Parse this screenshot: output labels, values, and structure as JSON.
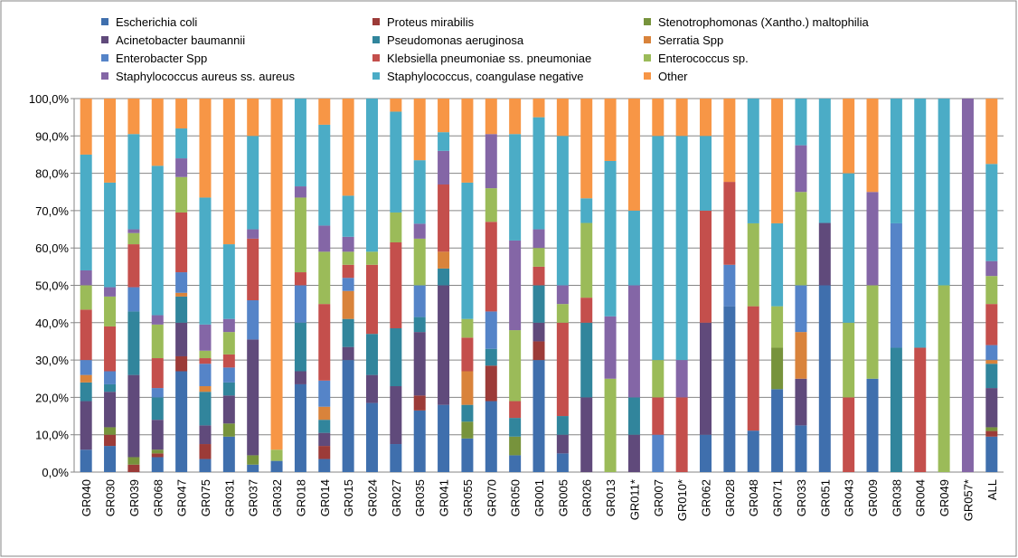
{
  "chart_data": {
    "type": "stacked_bar",
    "categories": [
      "GR040",
      "GR030",
      "GR039",
      "GR068",
      "GR047",
      "GR075",
      "GR031",
      "GR037",
      "GR032",
      "GR018",
      "GR014",
      "GR015",
      "GR024",
      "GR027",
      "GR035",
      "GR041",
      "GR055",
      "GR070",
      "GR050",
      "GR001",
      "GR005",
      "GR026",
      "GR013",
      "GR011*",
      "GR007",
      "GR010*",
      "GR062",
      "GR028",
      "GR048",
      "GR071",
      "GR033",
      "GR051",
      "GR043",
      "GR009",
      "GR038",
      "GR004",
      "GR049",
      "GR057*",
      "ALL"
    ],
    "series": [
      {
        "name": "Escherichia coli",
        "color": "#3f6fad",
        "values": [
          6,
          7,
          0,
          4,
          27,
          3.5,
          9.5,
          2,
          3,
          23.5,
          3.5,
          30,
          18.5,
          7.5,
          16.5,
          18,
          9,
          19,
          4.5,
          30,
          5,
          0,
          0,
          0,
          0,
          0,
          10,
          44.4,
          11.1,
          22.2,
          12.5,
          50,
          0,
          25,
          0,
          0,
          0,
          0,
          9.5
        ]
      },
      {
        "name": "Proteus mirabilis",
        "color": "#9c3b38",
        "values": [
          0,
          3,
          2,
          1,
          4,
          4,
          0,
          0,
          0,
          0,
          3.5,
          0,
          0,
          0,
          4,
          0,
          0,
          9.5,
          0,
          5,
          0,
          0,
          0,
          0,
          0,
          0,
          0,
          0,
          0,
          0,
          0,
          0,
          0,
          0,
          0,
          0,
          0,
          0,
          1.5
        ]
      },
      {
        "name": "Stenotrophomonas (Xantho.) maltophilia",
        "color": "#77933c",
        "values": [
          0,
          2,
          2,
          1,
          0,
          0,
          3.5,
          2.5,
          0,
          0,
          0,
          0,
          0,
          0,
          0,
          0,
          4.5,
          0,
          5,
          0,
          0,
          0,
          0,
          0,
          0,
          0,
          0,
          0,
          0,
          11.1,
          0,
          0,
          0,
          0,
          0,
          0,
          0,
          0,
          1
        ]
      },
      {
        "name": "Acinetobacter baumannii",
        "color": "#604a7b",
        "values": [
          13,
          9.5,
          22,
          8,
          9,
          5,
          7.5,
          31,
          0,
          3.5,
          3.5,
          3.5,
          7.5,
          15.5,
          17,
          32,
          0,
          0,
          0,
          5,
          5,
          20,
          0,
          10,
          0,
          0,
          30,
          0,
          0,
          0,
          12.5,
          16.7,
          0,
          0,
          0,
          0,
          0,
          0,
          10.5
        ]
      },
      {
        "name": "Pseudomonas aeruginosa",
        "color": "#31859c",
        "values": [
          5,
          2,
          17,
          6,
          7,
          9,
          3.5,
          0,
          0,
          13,
          3.5,
          7.5,
          11,
          15.5,
          4,
          4.5,
          4.5,
          4.5,
          5,
          10,
          5,
          20,
          0,
          10,
          0,
          0,
          0,
          0,
          0,
          0,
          0,
          0,
          0,
          0,
          33.3,
          0,
          0,
          0,
          6.5
        ]
      },
      {
        "name": "Serratia Spp",
        "color": "#d9833b",
        "values": [
          2,
          0,
          0,
          0,
          1,
          1.5,
          0,
          0,
          0,
          0,
          3.5,
          7.5,
          0,
          0,
          0,
          4.5,
          9,
          0,
          0,
          0,
          0,
          0,
          0,
          0,
          0,
          0,
          0,
          0,
          0,
          0,
          12.5,
          0,
          0,
          0,
          0,
          0,
          0,
          0,
          1
        ]
      },
      {
        "name": "Enterobacter Spp",
        "color": "#5584c8",
        "values": [
          4,
          3.5,
          6.5,
          2.5,
          5.5,
          6,
          4,
          10.5,
          0,
          10,
          7,
          3.5,
          0,
          0,
          8.5,
          0,
          0,
          10,
          0,
          0,
          0,
          0,
          0,
          0,
          10,
          0,
          0,
          11.1,
          0,
          0,
          12.5,
          0,
          0,
          0,
          33.3,
          0,
          0,
          0,
          4
        ]
      },
      {
        "name": "Klebsiella pneumoniae ss. pneumoniae",
        "color": "#c44f4c",
        "values": [
          13.5,
          12,
          11.5,
          8,
          16,
          1.5,
          3.5,
          16.5,
          0,
          3.5,
          20.5,
          3.5,
          18.5,
          23,
          0,
          18,
          9,
          24,
          4.5,
          5,
          25,
          6.7,
          0,
          0,
          10,
          20,
          30,
          22.2,
          33.3,
          0,
          0,
          0,
          20,
          0,
          0,
          33.3,
          0,
          0,
          11
        ]
      },
      {
        "name": "Enterococcus sp.",
        "color": "#9bbb59",
        "values": [
          6.5,
          8,
          3,
          9,
          9.5,
          2,
          6,
          0,
          3,
          20,
          14,
          3.5,
          3.5,
          8,
          12.5,
          0,
          5,
          9,
          19,
          5,
          5,
          20,
          25,
          0,
          10,
          0,
          0,
          0,
          22.2,
          11.1,
          25,
          0,
          20,
          25,
          0,
          0,
          50,
          0,
          7.5
        ]
      },
      {
        "name": "Staphylococcus aureus ss. aureus",
        "color": "#8466a6",
        "values": [
          4,
          2.5,
          1,
          2.5,
          5,
          7,
          3.5,
          2.5,
          0,
          3,
          7,
          4,
          0,
          0,
          4,
          9,
          0,
          14.5,
          24,
          5,
          5,
          0,
          16.7,
          30,
          0,
          10,
          0,
          0,
          0,
          0,
          12.5,
          0,
          0,
          25,
          0,
          0,
          0,
          100,
          4
        ]
      },
      {
        "name": "Staphylococcus, coangulase negative",
        "color": "#4bacc6",
        "values": [
          31,
          28,
          25.5,
          40,
          8,
          34,
          20,
          25,
          0,
          23.5,
          27,
          11,
          41,
          27,
          17,
          5,
          36.5,
          0,
          28.5,
          30,
          40,
          6.6,
          41.6,
          20,
          60,
          60,
          20,
          0,
          33.4,
          22.2,
          12.5,
          33.3,
          40,
          0,
          33.4,
          66.7,
          50,
          0,
          26
        ]
      },
      {
        "name": "Other",
        "color": "#f79646",
        "values": [
          15,
          22.5,
          9.5,
          18,
          8,
          26.5,
          39,
          10,
          94,
          0,
          7,
          26,
          0,
          3.5,
          16.5,
          9,
          22.5,
          9.5,
          9.5,
          5,
          10,
          26.7,
          16.7,
          30,
          10,
          10,
          10,
          22.3,
          0,
          33.4,
          0,
          0,
          20,
          25,
          0,
          0,
          0,
          0,
          17.5
        ]
      }
    ],
    "ylim": [
      0,
      100
    ],
    "yticks": [
      {
        "value": 0,
        "label": "0,0%"
      },
      {
        "value": 10,
        "label": "10,0%"
      },
      {
        "value": 20,
        "label": "20,0%"
      },
      {
        "value": 30,
        "label": "30,0%"
      },
      {
        "value": 40,
        "label": "40,0%"
      },
      {
        "value": 50,
        "label": "50,0%"
      },
      {
        "value": 60,
        "label": "60,0%"
      },
      {
        "value": 70,
        "label": "70,0%"
      },
      {
        "value": 80,
        "label": "80,0%"
      },
      {
        "value": 90,
        "label": "90,0%"
      },
      {
        "value": 100,
        "label": "100,0%"
      }
    ],
    "grid": true,
    "legend": "top"
  }
}
